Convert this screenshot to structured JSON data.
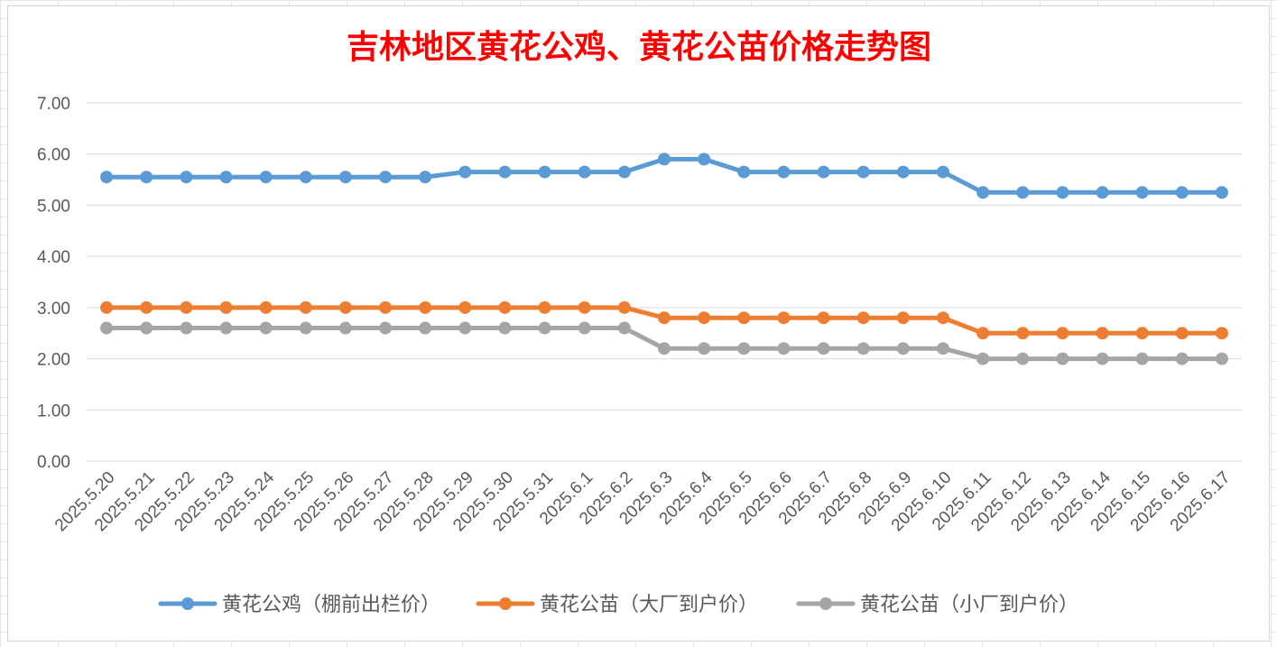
{
  "chart_data": {
    "type": "line",
    "title": "吉林地区黄花公鸡、黄花公苗价格走势图",
    "xlabel": "",
    "ylabel": "",
    "ylim": [
      0,
      7
    ],
    "yticks": [
      "0.00",
      "1.00",
      "2.00",
      "3.00",
      "4.00",
      "5.00",
      "6.00",
      "7.00"
    ],
    "grid": true,
    "legend_position": "bottom",
    "categories": [
      "2025.5.20",
      "2025.5.21",
      "2025.5.22",
      "2025.5.23",
      "2025.5.24",
      "2025.5.25",
      "2025.5.26",
      "2025.5.27",
      "2025.5.28",
      "2025.5.29",
      "2025.5.30",
      "2025.5.31",
      "2025.6.1",
      "2025.6.2",
      "2025.6.3",
      "2025.6.4",
      "2025.6.5",
      "2025.6.6",
      "2025.6.7",
      "2025.6.8",
      "2025.6.9",
      "2025.6.10",
      "2025.6.11",
      "2025.6.12",
      "2025.6.13",
      "2025.6.14",
      "2025.6.15",
      "2025.6.16",
      "2025.6.17"
    ],
    "series": [
      {
        "name": "黄花公鸡（棚前出栏价）",
        "color": "#5b9bd5",
        "values": [
          5.55,
          5.55,
          5.55,
          5.55,
          5.55,
          5.55,
          5.55,
          5.55,
          5.55,
          5.65,
          5.65,
          5.65,
          5.65,
          5.65,
          5.9,
          5.9,
          5.65,
          5.65,
          5.65,
          5.65,
          5.65,
          5.65,
          5.25,
          5.25,
          5.25,
          5.25,
          5.25,
          5.25,
          5.25
        ]
      },
      {
        "name": "黄花公苗（大厂到户价）",
        "color": "#ed7d31",
        "values": [
          3.0,
          3.0,
          3.0,
          3.0,
          3.0,
          3.0,
          3.0,
          3.0,
          3.0,
          3.0,
          3.0,
          3.0,
          3.0,
          3.0,
          2.8,
          2.8,
          2.8,
          2.8,
          2.8,
          2.8,
          2.8,
          2.8,
          2.5,
          2.5,
          2.5,
          2.5,
          2.5,
          2.5,
          2.5
        ]
      },
      {
        "name": "黄花公苗（小厂到户价）",
        "color": "#a5a5a5",
        "values": [
          2.6,
          2.6,
          2.6,
          2.6,
          2.6,
          2.6,
          2.6,
          2.6,
          2.6,
          2.6,
          2.6,
          2.6,
          2.6,
          2.6,
          2.2,
          2.2,
          2.2,
          2.2,
          2.2,
          2.2,
          2.2,
          2.2,
          2.0,
          2.0,
          2.0,
          2.0,
          2.0,
          2.0,
          2.0
        ]
      }
    ],
    "colors": {
      "title": "#ff0000",
      "gridline": "#d9d9d9",
      "tick_label": "#595959",
      "legend_text": "#595959"
    }
  }
}
